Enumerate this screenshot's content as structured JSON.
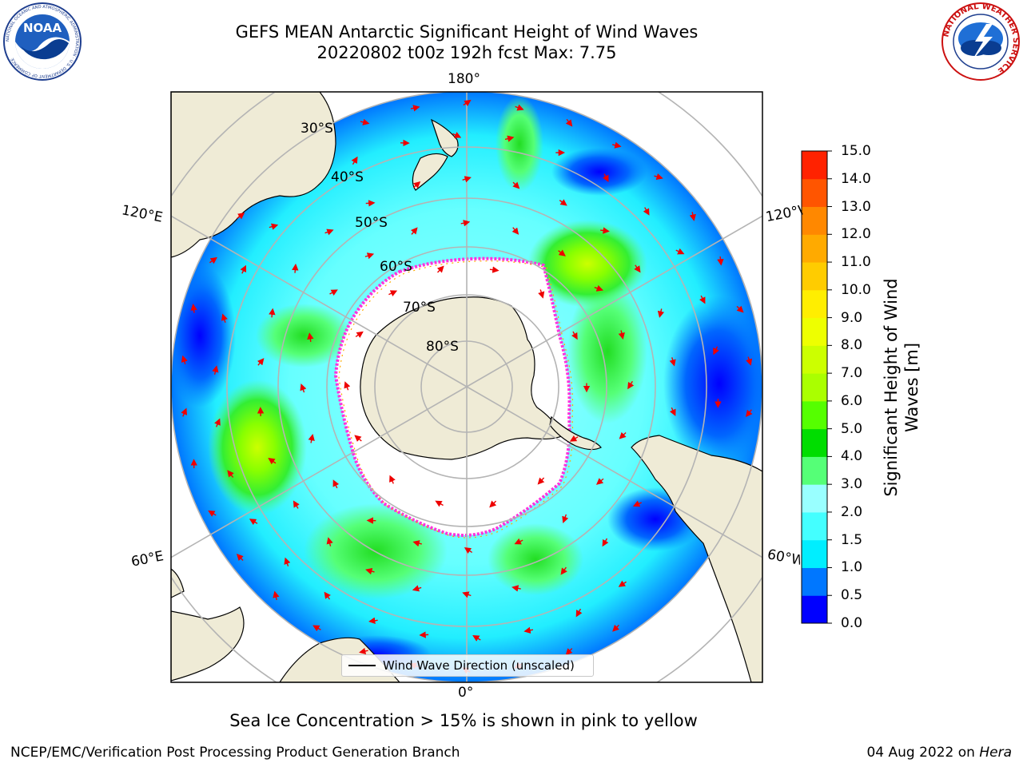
{
  "header": {
    "title_line1": "GEFS MEAN Antarctic Significant Height of Wind Waves",
    "title_line2": "20220802 t00z 192h fcst   Max: 7.75"
  },
  "logos": {
    "noaa_text": "NOAA",
    "noaa_ring_text": "NATIONAL OCEANIC AND ATMOSPHERIC ADMINISTRATION · U.S. DEPARTMENT OF COMMERCE",
    "nws_ring_text": "NATIONAL WEATHER SERVICE"
  },
  "map": {
    "projection": "south-polar-stereographic",
    "longitude_labels": {
      "top": "180°",
      "bottom": "0°",
      "upper_left": "120°E",
      "upper_right": "120°W",
      "lower_left": "60°E",
      "lower_right": "60°W"
    },
    "latitude_labels": [
      "30°S",
      "40°S",
      "50°S",
      "60°S",
      "70°S",
      "80°S"
    ],
    "legend_text": "Wind Wave Direction (unscaled)",
    "colors": {
      "land": "#efebd6",
      "ice_edge": "#ff33dd",
      "arrow": "#ee0000",
      "grid": "#b4b4b4"
    }
  },
  "colorbar": {
    "title_line1": "Significant Height of Wind",
    "title_line2": "Waves [m]",
    "ticks": [
      "0.0",
      "0.5",
      "1.0",
      "1.5",
      "2.0",
      "3.0",
      "4.0",
      "5.0",
      "6.0",
      "7.0",
      "8.0",
      "9.0",
      "10.0",
      "11.0",
      "12.0",
      "13.0",
      "14.0",
      "15.0"
    ],
    "colors": [
      "#0000ff",
      "#0077ff",
      "#00eeff",
      "#44ffff",
      "#99ffff",
      "#55ff77",
      "#00dd00",
      "#55ff00",
      "#aaff00",
      "#ccff00",
      "#eeff00",
      "#ffee00",
      "#ffcc00",
      "#ffaa00",
      "#ff8800",
      "#ff5500",
      "#ff2200"
    ]
  },
  "notes": {
    "sea_ice": "Sea Ice Concentration > 15% is shown in pink to yellow"
  },
  "footer": {
    "left": "NCEP/EMC/Verification Post Processing Product Generation Branch",
    "right_prefix": "04 Aug 2022 on ",
    "right_host": "Hera"
  }
}
